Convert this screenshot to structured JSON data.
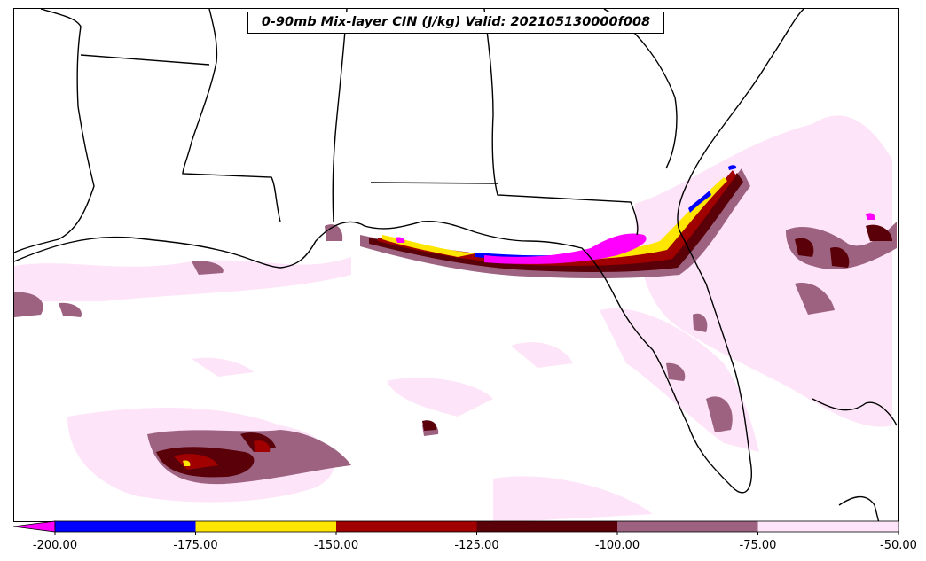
{
  "title": "0-90mb Mix-layer CIN (J/kg) Valid: 202105130000f008",
  "colorbar": {
    "ticks": [
      "-200.00",
      "-175.00",
      "-150.00",
      "-125.00",
      "-100.00",
      "-75.00",
      "-50.00"
    ],
    "bins": [
      {
        "from": -225,
        "to": -200,
        "color": "#ff00ff"
      },
      {
        "from": -200,
        "to": -175,
        "color": "#0000ff"
      },
      {
        "from": -175,
        "to": -150,
        "color": "#ffe600"
      },
      {
        "from": -150,
        "to": -125,
        "color": "#a00000"
      },
      {
        "from": -125,
        "to": -100,
        "color": "#5a0008"
      },
      {
        "from": -100,
        "to": -75,
        "color": "#9c6280"
      },
      {
        "from": -75,
        "to": -50,
        "color": "#fde4f8"
      }
    ],
    "extend": "min"
  }
}
